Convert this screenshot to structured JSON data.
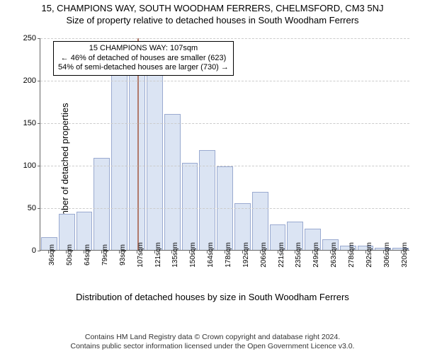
{
  "title": "15, CHAMPIONS WAY, SOUTH WOODHAM FERRERS, CHELMSFORD, CM3 5NJ",
  "subtitle": "Size of property relative to detached houses in South Woodham Ferrers",
  "ylabel": "Number of detached properties",
  "xlabel": "Distribution of detached houses by size in South Woodham Ferrers",
  "chart": {
    "type": "histogram",
    "ylim": [
      0,
      250
    ],
    "yticks": [
      0,
      50,
      100,
      150,
      200,
      250
    ],
    "bar_fill": "#dbe4f3",
    "bar_stroke": "#9aaad0",
    "background": "#ffffff",
    "grid_color": "#cccccc",
    "refline_color": "#b07a6a",
    "refline_category_index": 5,
    "categories": [
      "36sqm",
      "50sqm",
      "64sqm",
      "79sqm",
      "93sqm",
      "107sqm",
      "121sqm",
      "135sqm",
      "150sqm",
      "164sqm",
      "178sqm",
      "192sqm",
      "206sqm",
      "221sqm",
      "235sqm",
      "249sqm",
      "263sqm",
      "278sqm",
      "292sqm",
      "306sqm",
      "320sqm"
    ],
    "values": [
      15,
      42,
      45,
      108,
      217,
      230,
      215,
      160,
      102,
      117,
      98,
      55,
      68,
      30,
      33,
      25,
      12,
      5,
      5,
      2,
      2
    ]
  },
  "annotation": {
    "line1": "15 CHAMPIONS WAY: 107sqm",
    "line2": "← 46% of detached of houses are smaller (623)",
    "line3": "54% of semi-detached houses are larger (730) →"
  },
  "footer": {
    "line1": "Contains HM Land Registry data © Crown copyright and database right 2024.",
    "line2": "Contains public sector information licensed under the Open Government Licence v3.0."
  }
}
